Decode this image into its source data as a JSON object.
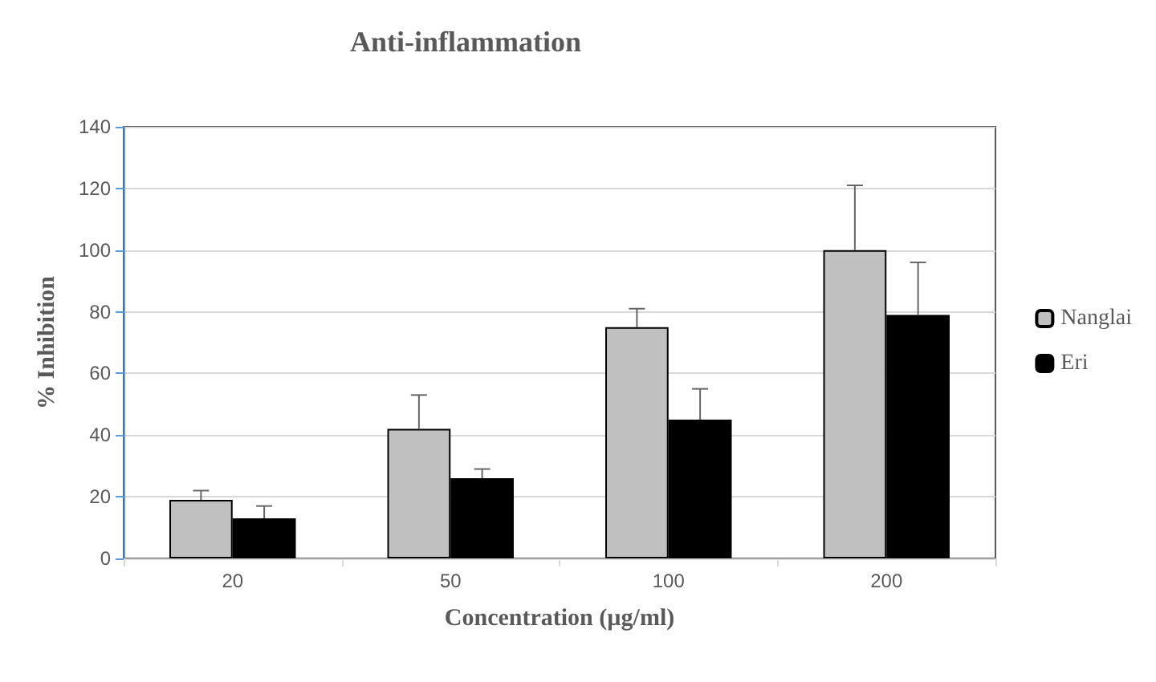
{
  "chart_data": {
    "type": "bar",
    "title": "Anti-inflammation",
    "xlabel": "Concentration (µg/ml)",
    "ylabel": "% Inhibition",
    "categories": [
      "20",
      "50",
      "100",
      "200"
    ],
    "series": [
      {
        "name": "Nanglai",
        "color": "#c0c0c0",
        "values": [
          19,
          42,
          75,
          100
        ],
        "errors": [
          [
            19,
            22
          ],
          [
            42,
            53
          ],
          [
            75,
            81
          ],
          [
            100,
            121
          ]
        ]
      },
      {
        "name": "Eri",
        "color": "#000000",
        "values": [
          13,
          26,
          45,
          79
        ],
        "errors": [
          [
            13,
            17
          ],
          [
            26,
            29
          ],
          [
            45,
            55
          ],
          [
            79,
            96
          ]
        ]
      }
    ],
    "ylim": [
      0,
      140
    ],
    "yticks": [
      0,
      20,
      40,
      60,
      80,
      100,
      120,
      140
    ],
    "grid": "y",
    "legend": "right"
  }
}
